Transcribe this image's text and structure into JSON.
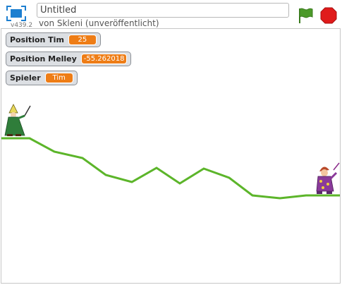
{
  "header": {
    "title_value": "Untitled",
    "version": "v439.2",
    "byline": "von Skleni (unveröffentlicht)"
  },
  "controls": {
    "green_flag_color": "#4c9a2a",
    "stop_color": "#e01b1b"
  },
  "monitors": [
    {
      "label": "Position Tim",
      "value": "25"
    },
    {
      "label": "Position Melley",
      "value": "-55.262018"
    },
    {
      "label": "Spieler",
      "value": "Tim"
    }
  ],
  "colors": {
    "monitor_value_bg": "#ee7d16",
    "track": "#5cb52a"
  },
  "sprites": [
    {
      "name": "wizard-sprite"
    },
    {
      "name": "jester-sprite"
    }
  ]
}
